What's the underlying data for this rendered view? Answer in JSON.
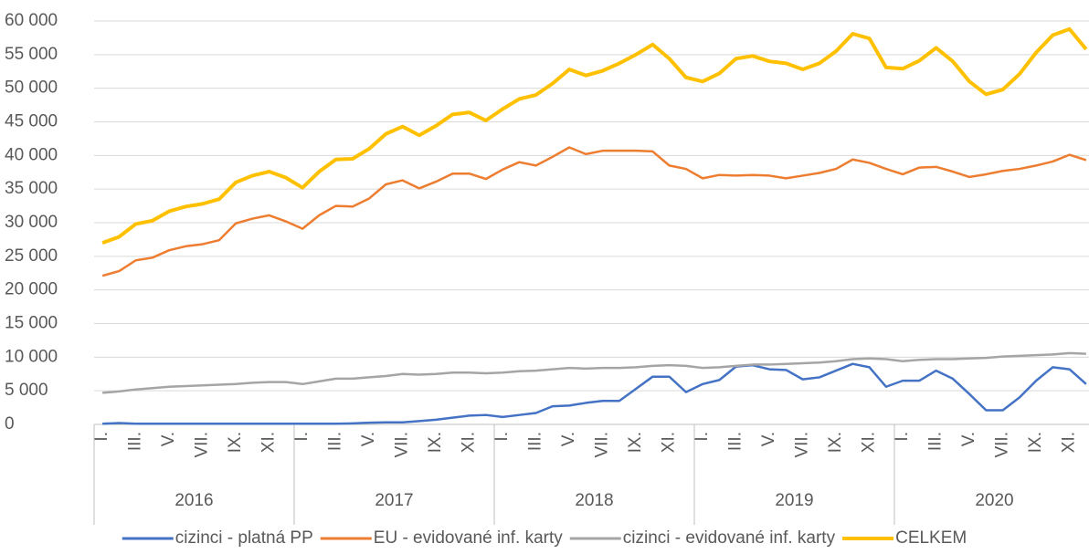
{
  "chart_data": {
    "type": "line",
    "categories": [
      "I.",
      null,
      "III.",
      null,
      "V.",
      null,
      "VII.",
      null,
      "IX.",
      null,
      "XI.",
      null,
      "I.",
      null,
      "III.",
      null,
      "V.",
      null,
      "VII.",
      null,
      "IX.",
      null,
      "XI.",
      null,
      "I.",
      null,
      "III.",
      null,
      "V.",
      null,
      "VII.",
      null,
      "IX.",
      null,
      "XI.",
      null,
      "I.",
      null,
      "III.",
      null,
      "V.",
      null,
      "VII.",
      null,
      "IX.",
      null,
      "XI.",
      null,
      "I.",
      null,
      "III.",
      null,
      "V.",
      null,
      "VII.",
      null,
      "IX.",
      null,
      "XI.",
      null
    ],
    "x_groups": [
      "2016",
      "2017",
      "2018",
      "2019",
      "2020"
    ],
    "ylim": [
      0,
      60000
    ],
    "yticks": [
      0,
      {
        "value": 5000,
        "label": "5 000"
      },
      {
        "value": 10000,
        "label": "10 000"
      },
      {
        "value": 15000,
        "label": "15 000"
      },
      {
        "value": 20000,
        "label": "20 000"
      },
      {
        "value": 25000,
        "label": "25 000"
      },
      {
        "value": 30000,
        "label": "30 000"
      },
      {
        "value": 35000,
        "label": "35 000"
      },
      {
        "value": 40000,
        "label": "40 000"
      },
      {
        "value": 45000,
        "label": "45 000"
      },
      {
        "value": 50000,
        "label": "50 000"
      },
      {
        "value": 55000,
        "label": "55 000"
      },
      {
        "value": 60000,
        "label": "60 000"
      }
    ],
    "grid": true,
    "legend": "bottom",
    "series": [
      {
        "name": "cizinci - platná PP",
        "color": "#4472c4",
        "values": [
          100,
          200,
          100,
          100,
          100,
          100,
          100,
          100,
          100,
          100,
          100,
          100,
          100,
          100,
          100,
          150,
          250,
          300,
          300,
          500,
          700,
          1000,
          1300,
          1400,
          1100,
          1400,
          1700,
          2700,
          2800,
          3200,
          3500,
          3500,
          5300,
          7100,
          7100,
          4800,
          6000,
          6600,
          8600,
          8800,
          8200,
          8100,
          6700,
          7000,
          8000,
          9000,
          8500,
          5600,
          6500,
          6500,
          8000,
          6800,
          4500,
          2100,
          2100,
          4000,
          6500,
          8500,
          8200,
          6000
        ]
      },
      {
        "name": "EU - evidované inf. karty",
        "color": "#ed7d31",
        "values": [
          22100,
          22800,
          24400,
          24800,
          25900,
          26500,
          26800,
          27400,
          29900,
          30600,
          31100,
          30200,
          29100,
          31100,
          32500,
          32400,
          33600,
          35700,
          36300,
          35100,
          36100,
          37300,
          37300,
          36500,
          37900,
          39000,
          38500,
          39800,
          41200,
          40200,
          40700,
          40700,
          40700,
          40600,
          38500,
          38000,
          36600,
          37100,
          37000,
          37100,
          37000,
          36600,
          37000,
          37400,
          38000,
          39400,
          38900,
          38000,
          37200,
          38200,
          38300,
          37600,
          36800,
          37200,
          37700,
          38000,
          38500,
          39100,
          40100,
          39300
        ]
      },
      {
        "name": "cizinci - evidované inf. karty",
        "color": "#a5a5a5",
        "values": [
          4700,
          4900,
          5200,
          5400,
          5600,
          5700,
          5800,
          5900,
          6000,
          6200,
          6300,
          6300,
          6000,
          6400,
          6800,
          6800,
          7000,
          7200,
          7500,
          7400,
          7500,
          7700,
          7700,
          7600,
          7700,
          7900,
          8000,
          8200,
          8400,
          8300,
          8400,
          8400,
          8500,
          8700,
          8800,
          8700,
          8400,
          8500,
          8700,
          8900,
          8900,
          9000,
          9100,
          9200,
          9400,
          9700,
          9800,
          9700,
          9400,
          9600,
          9700,
          9700,
          9800,
          9900,
          10100,
          10200,
          10300,
          10400,
          10600,
          10500
        ]
      },
      {
        "name": "CELKEM",
        "color": "#ffc000",
        "values": [
          27000,
          27900,
          29800,
          30300,
          31700,
          32400,
          32800,
          33500,
          36000,
          37000,
          37600,
          36700,
          35200,
          37600,
          39400,
          39500,
          41000,
          43200,
          44300,
          43000,
          44400,
          46100,
          46400,
          45200,
          46900,
          48400,
          49000,
          50700,
          52800,
          51900,
          52600,
          53700,
          55000,
          56500,
          54400,
          51600,
          51000,
          52200,
          54400,
          54800,
          54000,
          53700,
          52800,
          53700,
          55500,
          58100,
          57400,
          53100,
          52900,
          54100,
          56000,
          54000,
          51000,
          49100,
          49800,
          52100,
          55300,
          57900,
          58800,
          55800
        ]
      }
    ]
  }
}
